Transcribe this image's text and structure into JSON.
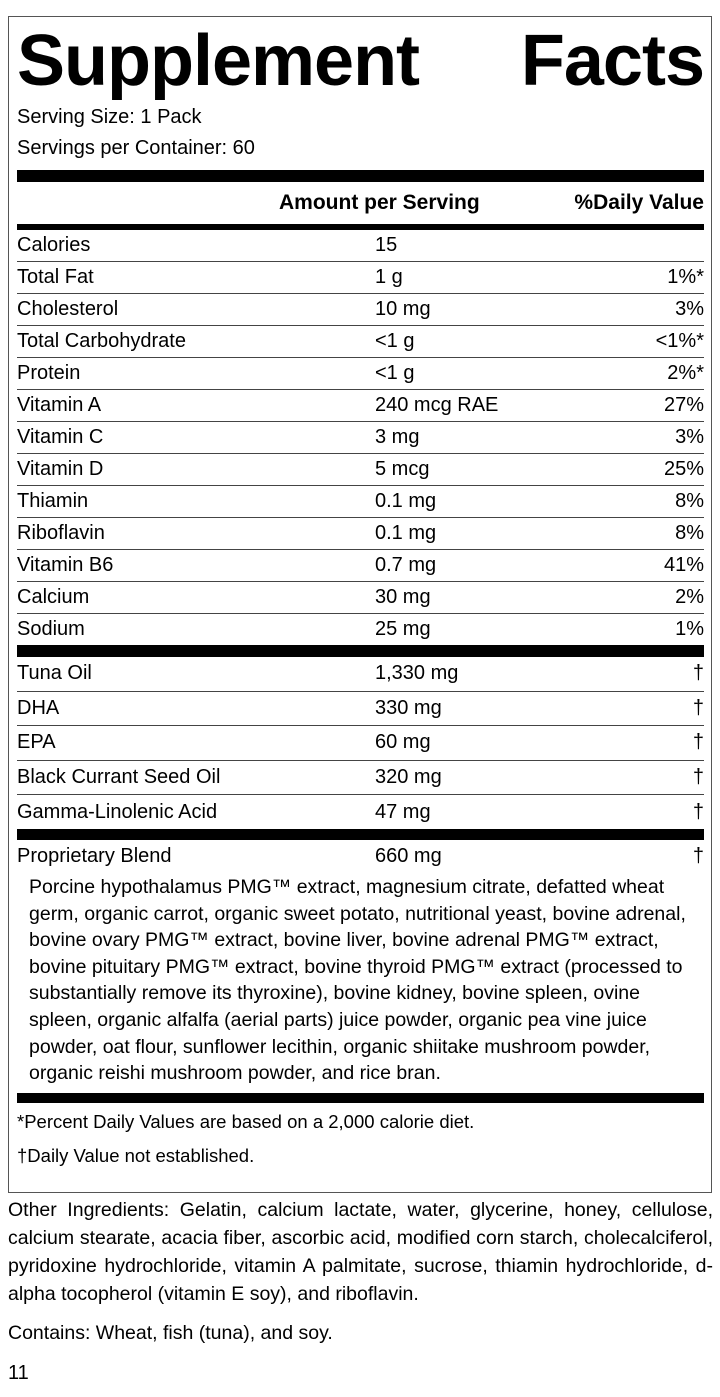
{
  "title_words": [
    "Supplement",
    "Facts"
  ],
  "serving_size": "Serving Size: 1 Pack",
  "servings_per_container": "Servings per Container: 60",
  "header": {
    "amount": "Amount per Serving",
    "dv": "%Daily Value"
  },
  "nutrients": [
    {
      "name": "Calories",
      "amount": "15",
      "dv": ""
    },
    {
      "name": "Total Fat",
      "amount": "1 g",
      "dv": "1%*"
    },
    {
      "name": "Cholesterol",
      "amount": "10 mg",
      "dv": "3%"
    },
    {
      "name": "Total Carbohydrate",
      "amount": "<1 g",
      "dv": "<1%*"
    },
    {
      "name": "Protein",
      "amount": "<1 g",
      "dv": "2%*"
    },
    {
      "name": "Vitamin A",
      "amount": "240 mcg RAE",
      "dv": "27%"
    },
    {
      "name": "Vitamin C",
      "amount": "3 mg",
      "dv": "3%"
    },
    {
      "name": "Vitamin D",
      "amount": "5 mcg",
      "dv": "25%"
    },
    {
      "name": "Thiamin",
      "amount": "0.1 mg",
      "dv": "8%"
    },
    {
      "name": "Riboflavin",
      "amount": "0.1 mg",
      "dv": "8%"
    },
    {
      "name": "Vitamin B6",
      "amount": "0.7 mg",
      "dv": "41%"
    },
    {
      "name": "Calcium",
      "amount": "30 mg",
      "dv": "2%"
    },
    {
      "name": "Sodium",
      "amount": "25 mg",
      "dv": "1%"
    }
  ],
  "oils": [
    {
      "name": "Tuna Oil",
      "amount": "1,330 mg",
      "dv": "†"
    },
    {
      "name": "DHA",
      "amount": "330 mg",
      "dv": "†"
    },
    {
      "name": "EPA",
      "amount": "60 mg",
      "dv": "†"
    },
    {
      "name": "Black Currant Seed Oil",
      "amount": "320 mg",
      "dv": "†"
    },
    {
      "name": "Gamma-Linolenic Acid",
      "amount": "47 mg",
      "dv": "†"
    }
  ],
  "blend": {
    "name": "Proprietary Blend",
    "amount": "660 mg",
    "dv": "†",
    "ingredients": "Porcine hypothalamus PMG™ extract, magnesium citrate, defatted wheat germ, organic carrot, organic sweet potato, nutritional yeast, bovine adrenal, bovine ovary PMG™ extract, bovine liver, bovine adrenal PMG™ extract, bovine pituitary PMG™ extract, bovine thyroid PMG™ extract (processed to substantially remove its thyroxine), bovine kidney, bovine spleen, ovine spleen, organic alfalfa (aerial parts) juice powder, organic pea vine juice powder, oat flour, sunflower lecithin, organic shiitake mushroom powder, organic reishi mushroom powder, and rice bran."
  },
  "footnotes": [
    "*Percent Daily Values are based on a 2,000 calorie diet.",
    "†Daily Value not established."
  ],
  "other_ingredients": "Other Ingredients: Gelatin, calcium lactate, water, glycerine, honey, cellulose, calcium stearate, acacia fiber, ascorbic acid, modified corn starch, cholecalciferol, pyridoxine hydrochloride, vitamin A palmitate, sucrose, thiamin hydrochloride, d-alpha tocopherol (vitamin E soy), and riboflavin.",
  "contains": "Contains: Wheat, fish (tuna), and soy.",
  "page_number": "11"
}
